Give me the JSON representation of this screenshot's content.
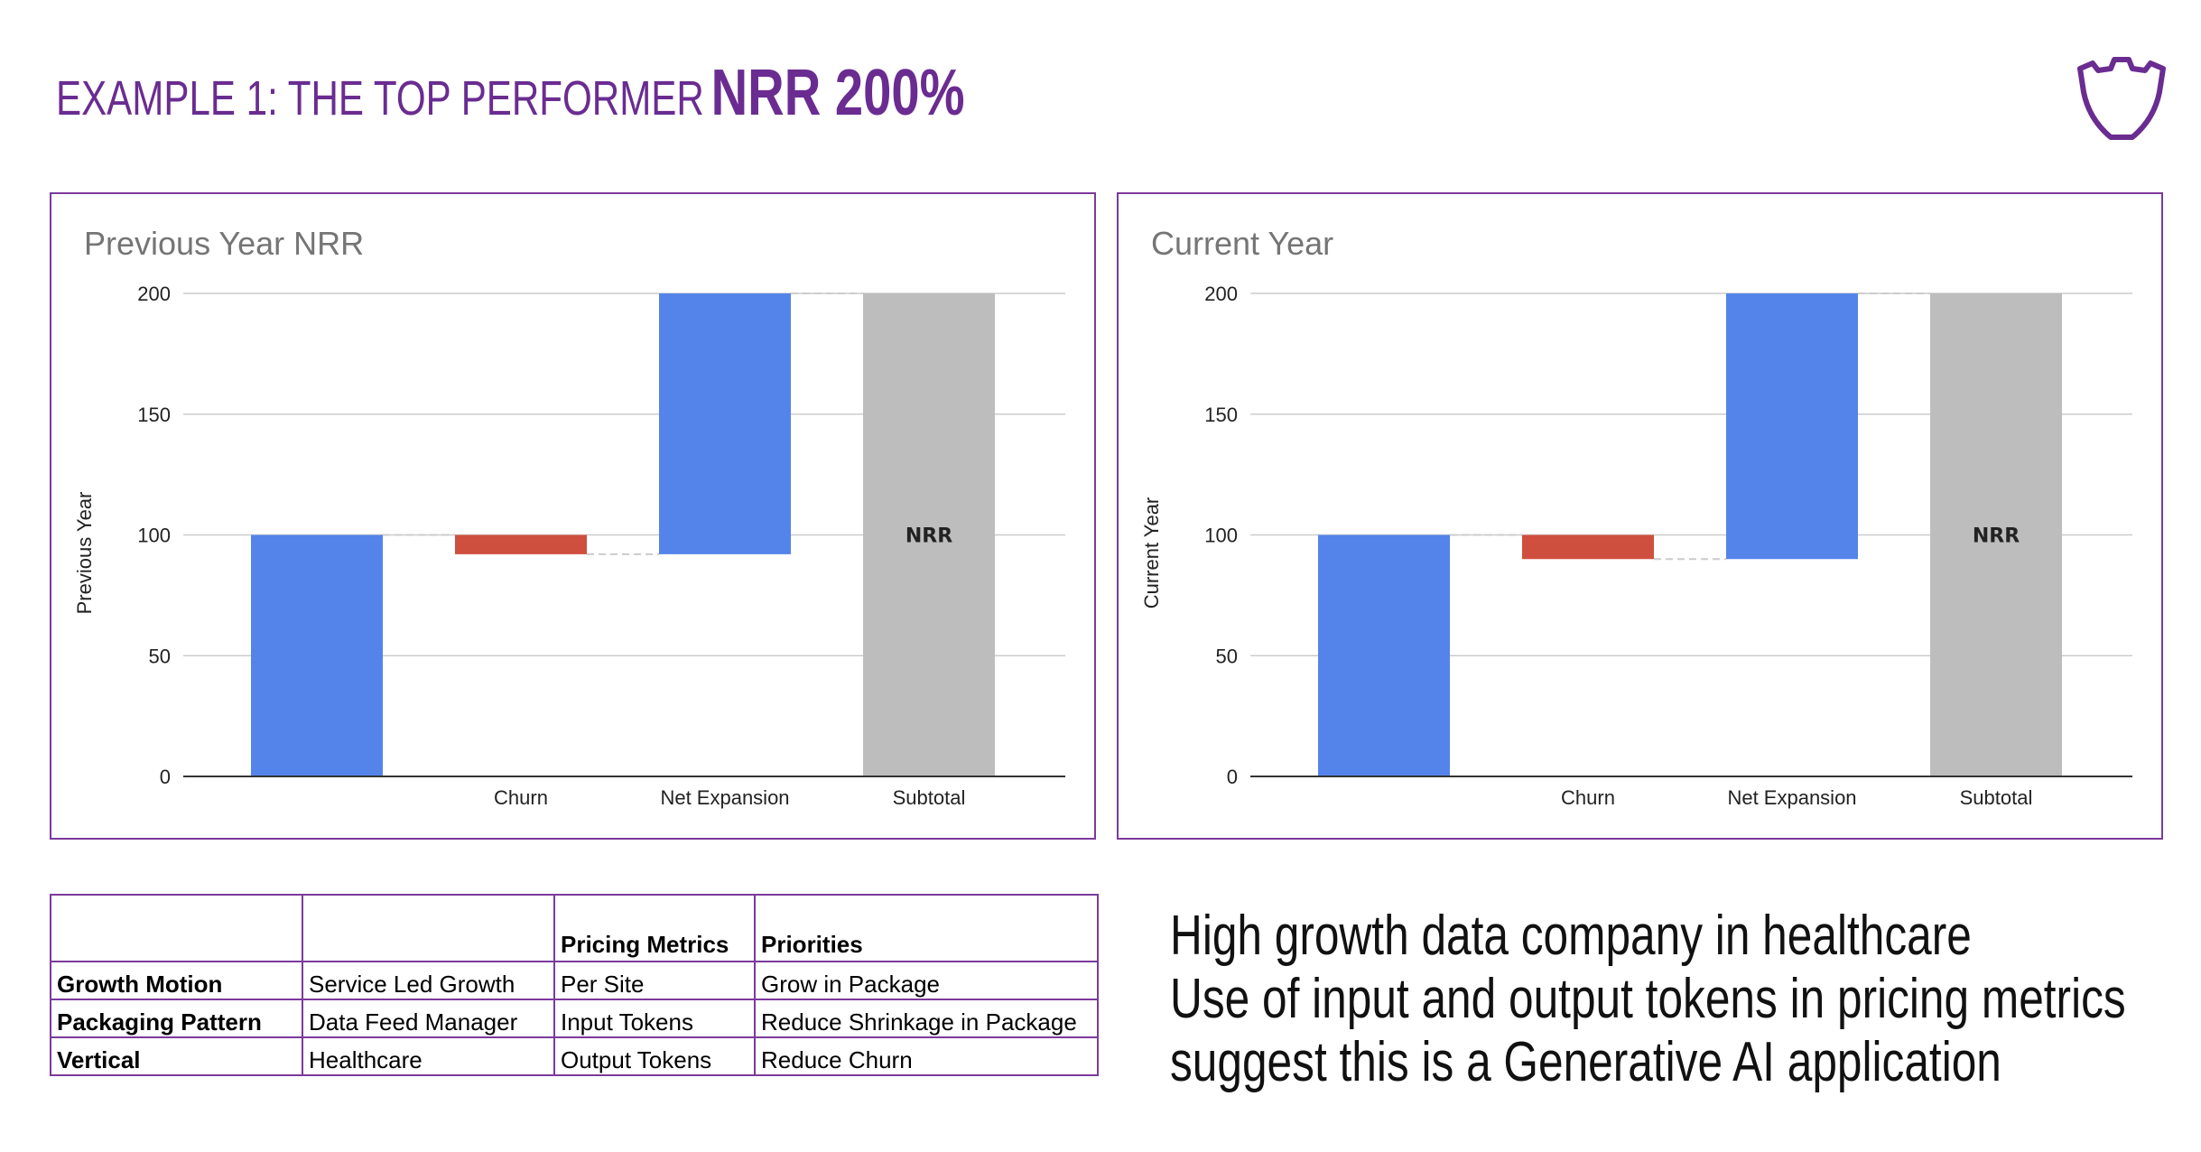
{
  "header": {
    "title_lead": "EXAMPLE 1: THE TOP PERFORMER",
    "title_highlight": "NRR 200%"
  },
  "colors": {
    "brand_purple": "#6a2c91",
    "increase_blue": "#5484ea",
    "decrease_red": "#cf4f3f",
    "subtotal_gray": "#bdbdbd"
  },
  "chart_data": [
    {
      "type": "waterfall",
      "title": "Previous Year NRR",
      "ylabel": "Previous Year",
      "xlabel": "",
      "ylim": [
        0,
        200
      ],
      "yticks": [
        0,
        50,
        100,
        150,
        200
      ],
      "categories": [
        "",
        "Churn",
        "Net Expansion",
        "Subtotal"
      ],
      "steps": [
        {
          "kind": "increase",
          "start": 0,
          "end": 100
        },
        {
          "kind": "decrease",
          "start": 100,
          "end": 92
        },
        {
          "kind": "increase",
          "start": 92,
          "end": 200
        },
        {
          "kind": "subtotal",
          "start": 0,
          "end": 200,
          "label": "NRR"
        }
      ],
      "grid": true
    },
    {
      "type": "waterfall",
      "title": "Current  Year",
      "ylabel": "Current  Year",
      "xlabel": "",
      "ylim": [
        0,
        200
      ],
      "yticks": [
        0,
        50,
        100,
        150,
        200
      ],
      "categories": [
        "",
        "Churn",
        "Net Expansion",
        "Subtotal"
      ],
      "steps": [
        {
          "kind": "increase",
          "start": 0,
          "end": 100
        },
        {
          "kind": "decrease",
          "start": 100,
          "end": 90
        },
        {
          "kind": "increase",
          "start": 90,
          "end": 200
        },
        {
          "kind": "subtotal",
          "start": 0,
          "end": 200,
          "label": "NRR"
        }
      ],
      "grid": true
    }
  ],
  "table": {
    "headers": [
      "",
      "",
      "Pricing Metrics",
      "Priorities"
    ],
    "rows": [
      [
        "Growth Motion",
        "Service Led Growth",
        "Per Site",
        "Grow in Package"
      ],
      [
        "Packaging Pattern",
        "Data Feed Manager",
        "Input Tokens",
        "Reduce Shrinkage in Package"
      ],
      [
        "Vertical",
        "Healthcare",
        "Output Tokens",
        "Reduce Churn"
      ]
    ]
  },
  "note": {
    "lines": [
      "High growth data company in healthcare",
      "Use of input and output tokens in pricing metrics",
      "suggest this is a Generative AI application"
    ]
  }
}
